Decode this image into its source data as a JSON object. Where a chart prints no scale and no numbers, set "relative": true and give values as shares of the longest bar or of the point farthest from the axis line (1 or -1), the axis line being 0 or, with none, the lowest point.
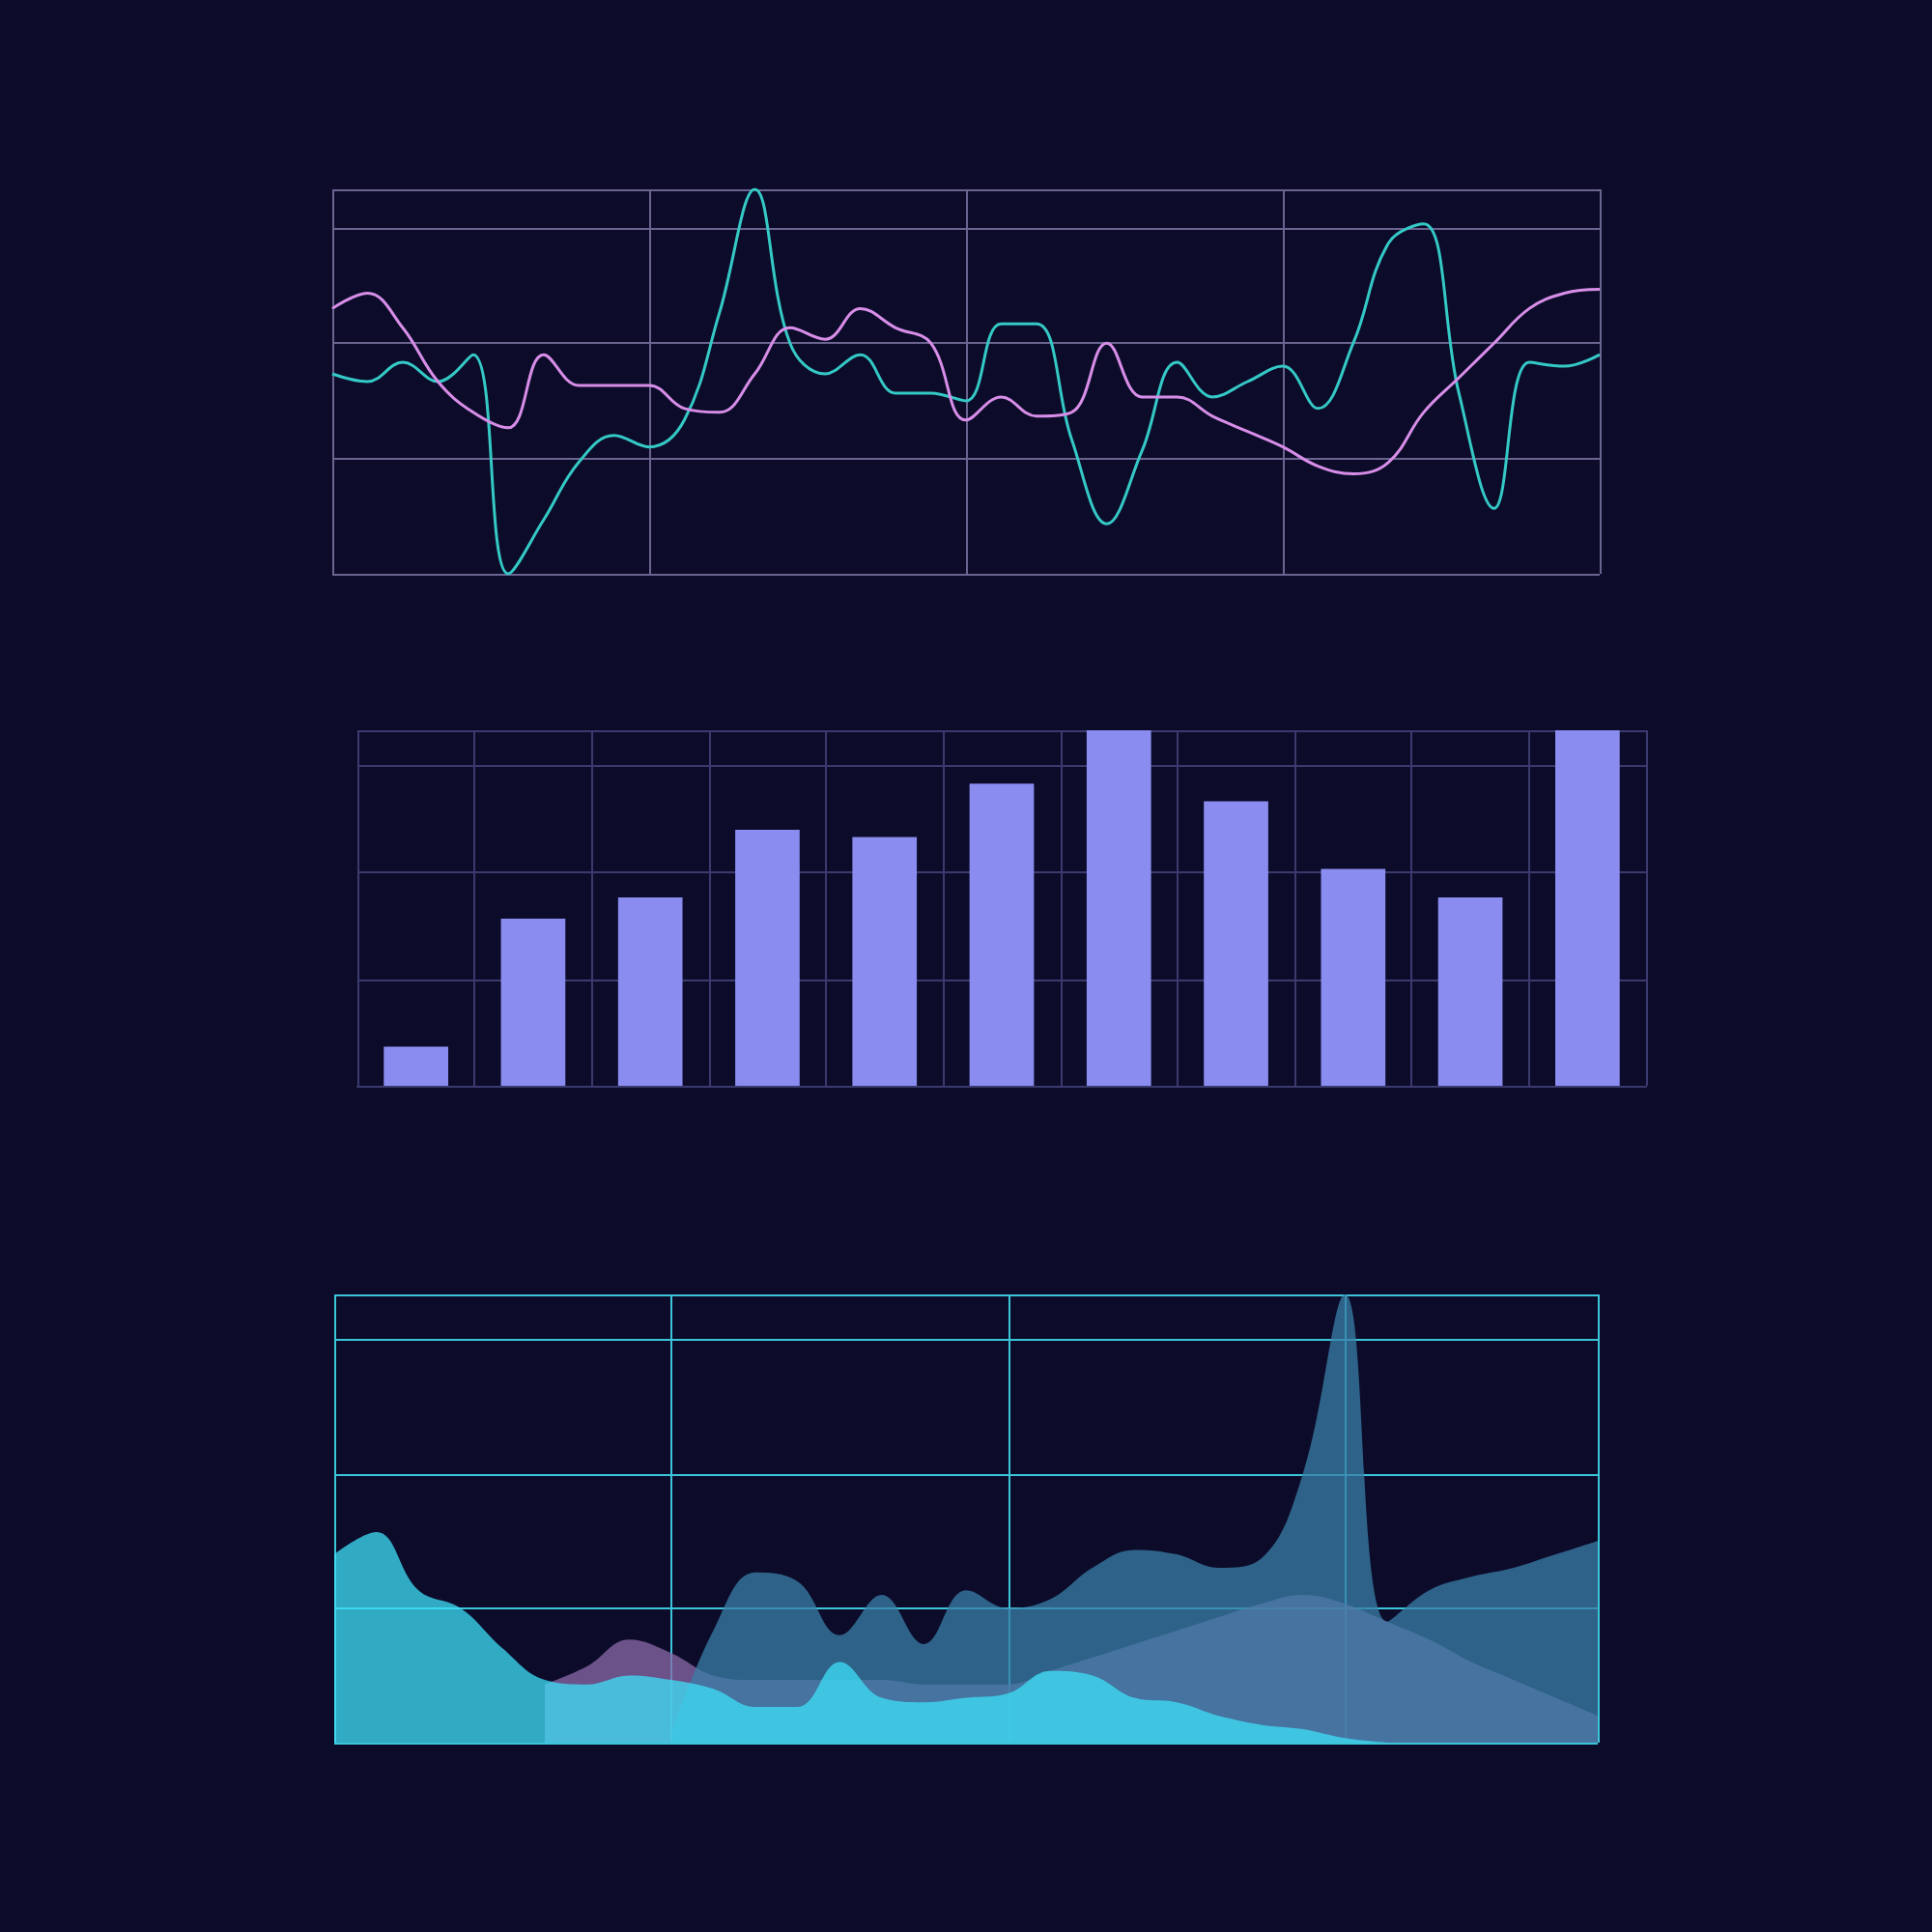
{
  "chart_data": [
    {
      "type": "line",
      "relative": true,
      "grid": true,
      "marker": "none",
      "line_style": "solid",
      "categories": [
        null,
        null,
        null,
        null,
        null,
        null,
        null,
        null,
        null,
        null,
        null,
        null,
        null,
        null,
        null,
        null,
        null,
        null,
        null,
        null,
        null,
        null,
        null,
        null,
        null,
        null,
        null,
        null,
        null,
        null,
        null,
        null,
        null,
        null,
        null,
        null,
        null
      ],
      "series": [
        {
          "color": "#35c9c6",
          "values": [
            0.52,
            0.5,
            0.55,
            0.5,
            0.57,
            0.0,
            0.14,
            0.29,
            0.36,
            0.33,
            0.4,
            0.68,
            1.0,
            0.6,
            0.52,
            0.57,
            0.47,
            0.47,
            0.45,
            0.65,
            0.65,
            0.35,
            0.13,
            0.32,
            0.55,
            0.46,
            0.5,
            0.54,
            0.43,
            0.6,
            0.86,
            0.91,
            0.47,
            0.17,
            0.55,
            0.54,
            0.57
          ]
        },
        {
          "color": "#d88ee8",
          "values": [
            0.69,
            0.73,
            0.64,
            0.5,
            0.42,
            0.38,
            0.57,
            0.49,
            0.49,
            0.49,
            0.43,
            0.42,
            0.52,
            0.64,
            0.61,
            0.69,
            0.64,
            0.6,
            0.4,
            0.46,
            0.41,
            0.42,
            0.6,
            0.46,
            0.46,
            0.41,
            0.37,
            0.33,
            0.28,
            0.26,
            0.29,
            0.42,
            0.51,
            0.6,
            0.69,
            0.73,
            0.74
          ]
        }
      ]
    },
    {
      "type": "bar",
      "relative": true,
      "grid": true,
      "categories": [
        null,
        null,
        null,
        null,
        null,
        null,
        null,
        null,
        null,
        null,
        null
      ],
      "color": "#8a8cf0",
      "values": [
        0.11,
        0.47,
        0.53,
        0.72,
        0.7,
        0.85,
        1.0,
        0.8,
        0.61,
        0.53,
        1.0
      ]
    },
    {
      "type": "area",
      "relative": true,
      "grid": true,
      "categories": [
        null,
        null,
        null,
        null,
        null,
        null,
        null,
        null,
        null,
        null,
        null,
        null,
        null,
        null,
        null,
        null,
        null,
        null,
        null,
        null,
        null,
        null,
        null,
        null,
        null,
        null,
        null,
        null,
        null,
        null,
        null
      ],
      "series": [
        {
          "color": "#8b6aa8",
          "values": [
            null,
            null,
            null,
            null,
            null,
            0.13,
            0.17,
            0.23,
            0.2,
            0.15,
            0.14,
            0.14,
            0.14,
            0.14,
            0.13,
            0.13,
            0.13,
            0.16,
            0.19,
            0.22,
            0.25,
            0.28,
            0.31,
            0.33,
            0.31,
            0.27,
            0.23,
            0.18,
            0.14,
            0.1,
            0.06
          ]
        },
        {
          "color": "#3a7fa8",
          "values": [
            null,
            null,
            null,
            null,
            null,
            null,
            null,
            null,
            0.02,
            0.25,
            0.38,
            0.36,
            0.24,
            0.33,
            0.22,
            0.34,
            0.3,
            0.32,
            0.39,
            0.43,
            0.42,
            0.39,
            0.41,
            0.6,
            1.0,
            0.27,
            0.34,
            0.37,
            0.39,
            0.42,
            0.45
          ]
        },
        {
          "color": "#3de0f8",
          "values": [
            0.42,
            0.47,
            0.34,
            0.3,
            0.21,
            0.14,
            0.13,
            0.15,
            0.14,
            0.12,
            0.08,
            0.08,
            0.18,
            0.1,
            0.09,
            0.1,
            0.11,
            0.16,
            0.15,
            0.1,
            0.09,
            0.06,
            0.04,
            0.03,
            0.01,
            0.0,
            null,
            null,
            null,
            null,
            null
          ]
        }
      ]
    }
  ]
}
